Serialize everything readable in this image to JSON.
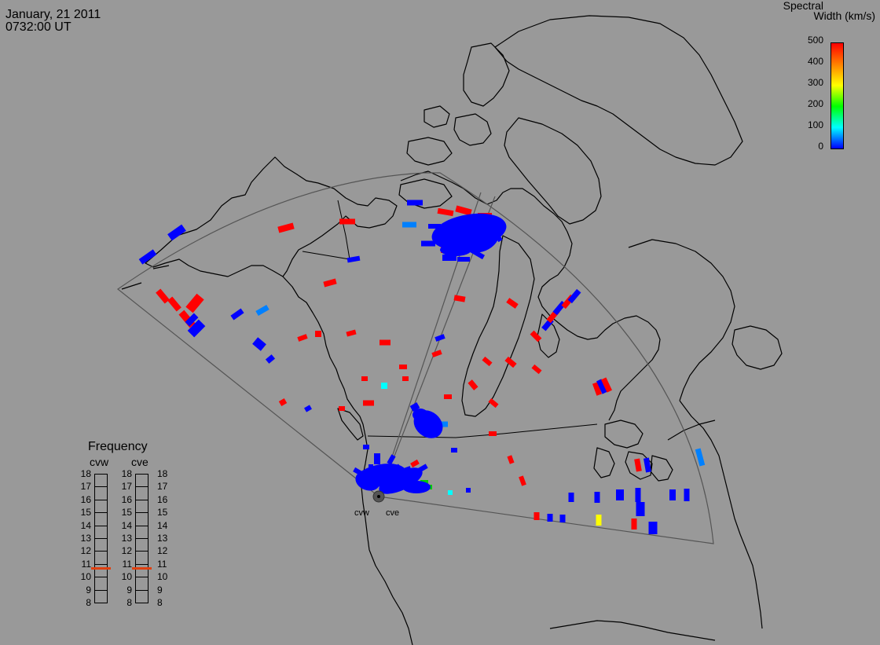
{
  "header": {
    "date": "January, 21 2011",
    "time": "0732:00 UT"
  },
  "colorbar": {
    "title_line1": "Spectral",
    "title_line2": "Width (km/s)",
    "ticks": [
      "500",
      "400",
      "300",
      "200",
      "100",
      "0"
    ],
    "colors": [
      "#ff0000",
      "#ff8000",
      "#ffff00",
      "#00ff00",
      "#00ffff",
      "#0000ff"
    ]
  },
  "radars": [
    "cvw",
    "cve"
  ],
  "frequency": {
    "title": "Frequency",
    "columns": [
      {
        "name": "cvw",
        "value_mhz": 10.7
      },
      {
        "name": "cve",
        "value_mhz": 10.7
      }
    ],
    "ticks": [
      "18",
      "17",
      "16",
      "15",
      "14",
      "13",
      "12",
      "11",
      "10",
      "9",
      "8"
    ]
  },
  "map": {
    "background": "#999999",
    "coast_color": "#000000",
    "fov_color": "#555555",
    "scatter_colors": {
      "blue": "#0000ff",
      "red": "#ff0000",
      "light_blue": "#0080ff",
      "cyan": "#00ffff",
      "yellow": "#ffff00",
      "green": "#00cc00"
    }
  }
}
